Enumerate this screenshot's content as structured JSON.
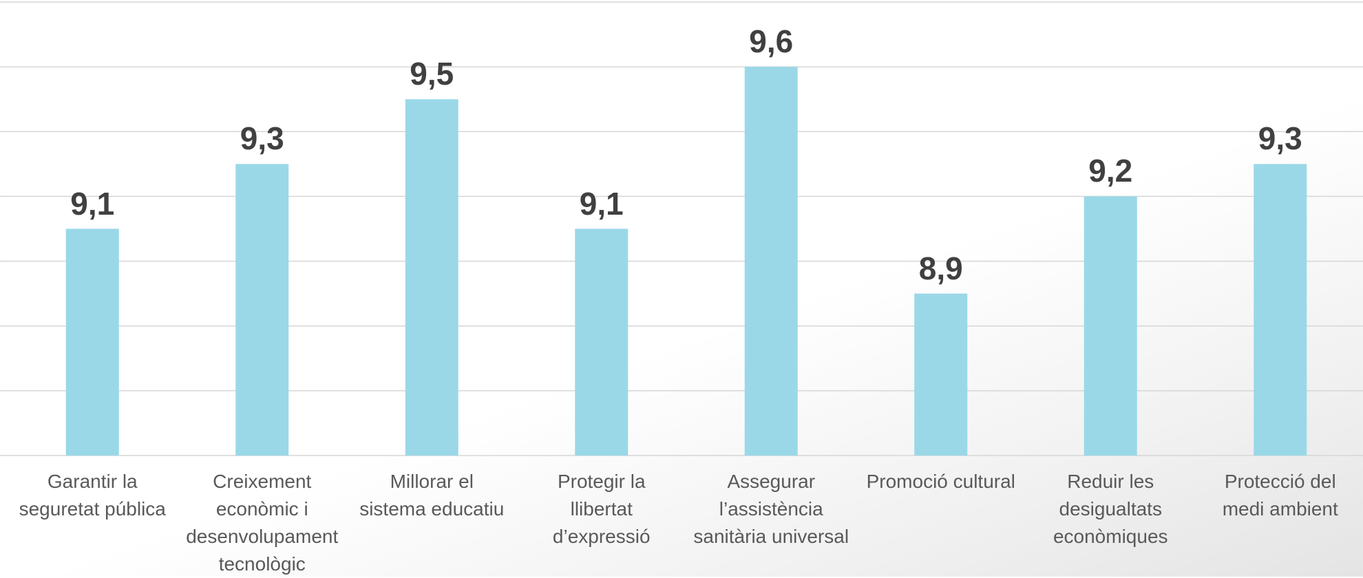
{
  "chart_data": {
    "type": "bar",
    "categories": [
      "Garantir la\nseguretat pública",
      "Creixement\neconòmic i\ndesenvolupament\ntecnològic",
      "Millorar el\nsistema educatiu",
      "Protegir la\nllibertat\nd’expressió",
      "Assegurar\nl’assistència\nsanitària universal",
      "Promoció cultural",
      "Reduir les\ndesigualtats\neconòmiques",
      "Protecció del\nmedi ambient"
    ],
    "values": [
      9.1,
      9.3,
      9.5,
      9.1,
      9.6,
      8.9,
      9.2,
      9.3
    ],
    "value_labels": [
      "9,1",
      "9,3",
      "9,5",
      "9,1",
      "9,6",
      "8,9",
      "9,2",
      "9,3"
    ],
    "color": "#9ad8e8",
    "ylim": [
      8.4,
      9.8
    ],
    "yticks": [
      8.4,
      8.6,
      8.8,
      9.0,
      9.2,
      9.4,
      9.6,
      9.8
    ],
    "grid": true
  }
}
